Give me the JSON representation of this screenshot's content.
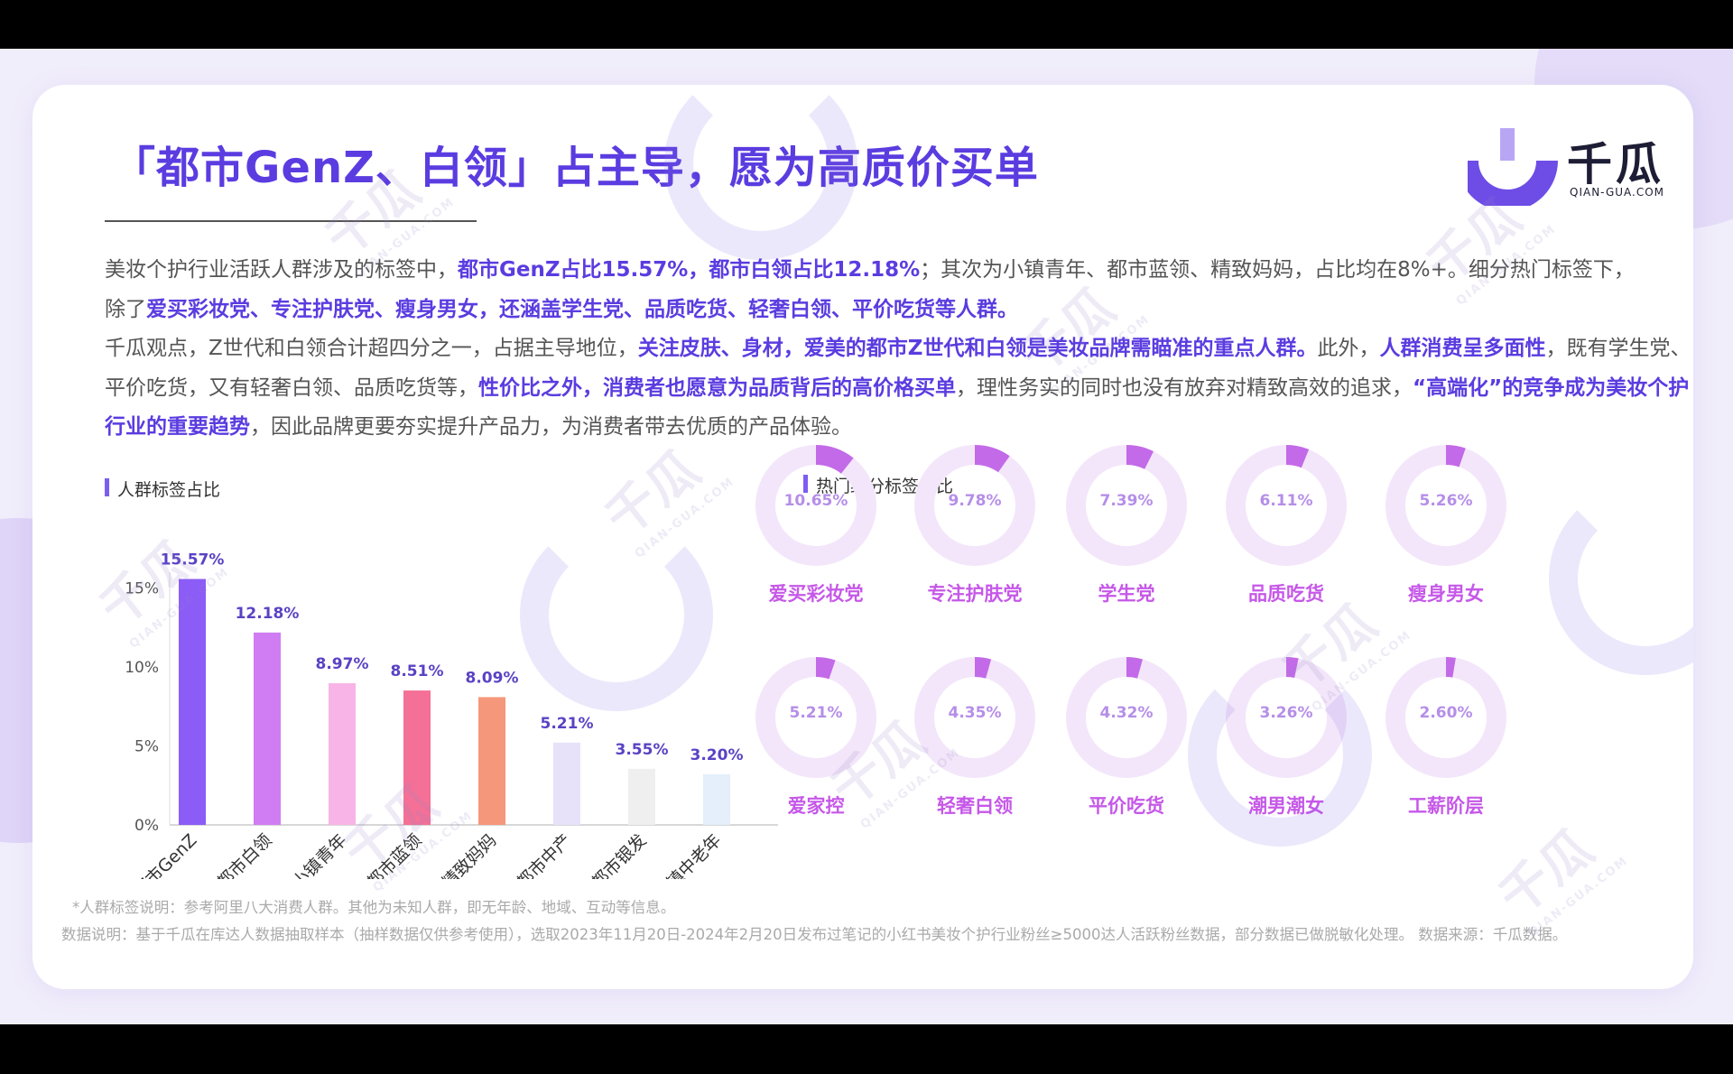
{
  "title": "「都市GenZ、白领」占主导，愿为高质价买单",
  "logo": {
    "cn": "千瓜",
    "en": "QIAN-GUA.COM"
  },
  "watermark": {
    "cn": "千瓜",
    "en": "QIAN-GUA.COM"
  },
  "paragraph": {
    "l1a": "美妆个护行业活跃人群涉及的标签中，",
    "l1b": "都市GenZ占比15.57%，都市白领占比12.18%",
    "l1c": "；其次为小镇青年、都市蓝领、精致妈妈，占比均在8%+。细分热门标签下，",
    "l2a": "除了",
    "l2b": "爱买彩妆党、专注护肤党、瘦身男女，还涵盖学生党、品质吃货、轻奢白领、平价吃货等人群。",
    "p2a": "千瓜观点，Z世代和白领合计超四分之一，占据主导地位，",
    "p2b": "关注皮肤、身材，爱美的都市Z世代和白领是美妆品牌需瞄准的重点人群。",
    "p2c": "此外，",
    "p2d": "人群消费呈多面性",
    "p2e": "，既有学生党、平价吃货，又有轻奢白领、品质吃货等，",
    "p2f": "性价比之外，消费者也愿意为品质背后的高价格买单",
    "p2g": "，理性务实的同时也没有放弃对精致高效的追求，",
    "p2h": "“高端化”的竞争成为美妆个护行业的重要趋势",
    "p2i": "，因此品牌更要夯实提升产品力，为消费者带去优质的产品体验。"
  },
  "left_section_label": "人群标签占比",
  "right_section_label": "热门细分标签占比",
  "chart_data": [
    {
      "type": "bar",
      "title": "人群标签占比",
      "categories": [
        "都市GenZ",
        "都市白领",
        "小镇青年",
        "都市蓝领",
        "精致妈妈",
        "都市中产",
        "都市银发",
        "小镇中老年"
      ],
      "values": [
        15.57,
        12.18,
        8.97,
        8.51,
        8.09,
        5.21,
        3.55,
        3.2
      ],
      "value_labels": [
        "15.57%",
        "12.18%",
        "8.97%",
        "8.51%",
        "8.09%",
        "5.21%",
        "3.55%",
        "3.20%"
      ],
      "colors": [
        "#8b5cf6",
        "#d07cf2",
        "#f8b4e6",
        "#f47096",
        "#f5977a",
        "#e7e2f9",
        "#efefef",
        "#e4effb"
      ],
      "yticks": [
        "0%",
        "5%",
        "10%",
        "15%"
      ],
      "ytick_values": [
        0,
        5,
        10,
        15
      ],
      "ylim": [
        0,
        16
      ],
      "grid": false
    },
    {
      "type": "pie",
      "title": "热门细分标签占比",
      "categories": [
        "爱买彩妆党",
        "专注护肤党",
        "学生党",
        "品质吃货",
        "瘦身男女",
        "爱家控",
        "轻奢白领",
        "平价吃货",
        "潮男潮女",
        "工薪阶层"
      ],
      "values": [
        10.65,
        9.78,
        7.39,
        6.11,
        5.26,
        5.21,
        4.35,
        4.32,
        3.26,
        2.6
      ],
      "value_labels": [
        "10.65%",
        "9.78%",
        "7.39%",
        "6.11%",
        "5.26%",
        "5.21%",
        "4.35%",
        "4.32%",
        "3.26%",
        "2.60%"
      ],
      "ring_color": "#f3e6fa",
      "fill_color": "#c36ae8"
    }
  ],
  "footnote": "*人群标签说明：参考阿里八大消费人群。其他为未知人群，即无年龄、地域、互动等信息。",
  "datanote": "数据说明：基于千瓜在库达人数据抽取样本（抽样数据仅供参考使用），选取2023年11月20日-2024年2月20日发布过笔记的小红书美妆个护行业粉丝≥5000达人活跃粉丝数据，部分数据已做脱敏化处理。 数据来源：千瓜数据。"
}
